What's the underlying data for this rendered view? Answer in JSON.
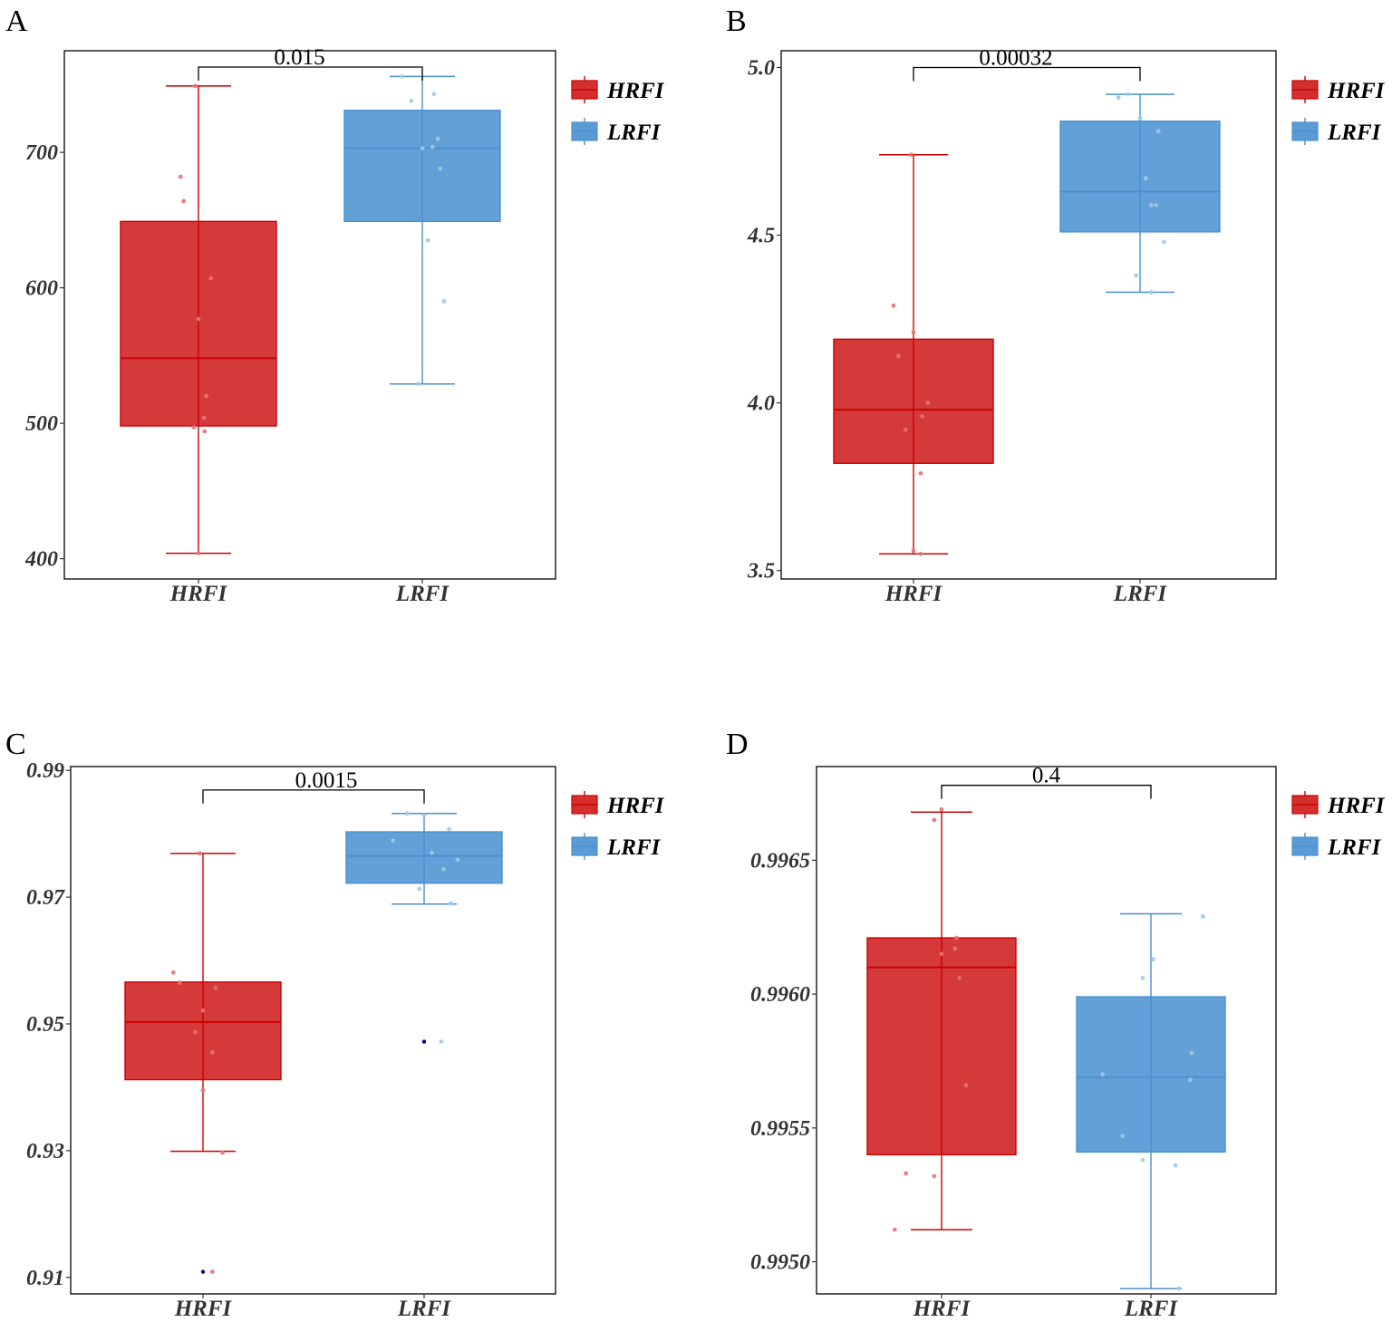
{
  "colors": {
    "HRFI_fill": "#d32f2f",
    "HRFI_line": "#cc0000",
    "HRFI_point": "#e57373",
    "LRFI_fill": "#5b9bd5",
    "LRFI_line": "#4a8fd0",
    "LRFI_point": "#9ecae1",
    "outlier": "#00008b"
  },
  "chart_data": [
    {
      "panel": "A",
      "type": "box",
      "ylim": [
        385,
        775
      ],
      "yticks": [
        {
          "v": 400,
          "label": "400"
        },
        {
          "v": 500,
          "label": "500"
        },
        {
          "v": 600,
          "label": "600"
        },
        {
          "v": 700,
          "label": "700"
        }
      ],
      "categories": [
        "HRFI",
        "LRFI"
      ],
      "pvalue": "0.015",
      "bracket_y": 771,
      "legend": [
        "HRFI",
        "LRFI"
      ],
      "boxes": [
        {
          "name": "HRFI",
          "min": 404,
          "q1": 498,
          "median": 548,
          "q3": 649,
          "max": 749,
          "outliers": [],
          "points": [
            [
              -0.04,
              749
            ],
            [
              -0.23,
              682
            ],
            [
              -0.19,
              664
            ],
            [
              0.16,
              607
            ],
            [
              0.0,
              577
            ],
            [
              0.1,
              520
            ],
            [
              0.07,
              504
            ],
            [
              -0.06,
              497
            ],
            [
              0.08,
              494
            ],
            [
              0.0,
              404
            ]
          ]
        },
        {
          "name": "LRFI",
          "min": 529,
          "q1": 649,
          "median": 703,
          "q3": 731,
          "max": 756,
          "outliers": [],
          "points": [
            [
              -0.26,
              756
            ],
            [
              -0.14,
              738
            ],
            [
              0.15,
              743
            ],
            [
              0.2,
              710
            ],
            [
              0.13,
              704
            ],
            [
              0.23,
              688
            ],
            [
              0.0,
              703
            ],
            [
              0.07,
              635
            ],
            [
              0.28,
              590
            ],
            [
              -0.05,
              529
            ]
          ]
        }
      ]
    },
    {
      "panel": "B",
      "type": "box",
      "ylim": [
        3.475,
        5.05
      ],
      "yticks": [
        {
          "v": 3.5,
          "label": "3.5"
        },
        {
          "v": 4.0,
          "label": "4.0"
        },
        {
          "v": 4.5,
          "label": "4.5"
        },
        {
          "v": 5.0,
          "label": "5.0"
        }
      ],
      "categories": [
        "HRFI",
        "LRFI"
      ],
      "pvalue": "0.00032",
      "bracket_y": 5.0,
      "legend": [
        "HRFI",
        "LRFI"
      ],
      "boxes": [
        {
          "name": "HRFI",
          "min": 3.55,
          "q1": 3.82,
          "median": 3.98,
          "q3": 4.19,
          "max": 4.74,
          "outliers": [],
          "points": [
            [
              -0.03,
              4.74
            ],
            [
              -0.25,
              4.29
            ],
            [
              0.0,
              4.21
            ],
            [
              -0.19,
              4.14
            ],
            [
              0.18,
              4.0
            ],
            [
              0.11,
              3.96
            ],
            [
              -0.1,
              3.92
            ],
            [
              0.09,
              3.79
            ],
            [
              0.0,
              3.56
            ],
            [
              0.09,
              3.55
            ]
          ]
        },
        {
          "name": "LRFI",
          "min": 4.33,
          "q1": 4.51,
          "median": 4.63,
          "q3": 4.84,
          "max": 4.92,
          "outliers": [],
          "points": [
            [
              -0.27,
              4.91
            ],
            [
              -0.15,
              4.92
            ],
            [
              0.0,
              4.85
            ],
            [
              0.23,
              4.81
            ],
            [
              0.07,
              4.67
            ],
            [
              0.14,
              4.59
            ],
            [
              0.2,
              4.59
            ],
            [
              0.3,
              4.48
            ],
            [
              -0.05,
              4.38
            ],
            [
              0.14,
              4.33
            ]
          ]
        }
      ]
    },
    {
      "panel": "C",
      "type": "box",
      "ylim": [
        0.9074,
        0.9906
      ],
      "yticks": [
        {
          "v": 0.91,
          "label": "0.91"
        },
        {
          "v": 0.93,
          "label": "0.93"
        },
        {
          "v": 0.95,
          "label": "0.95"
        },
        {
          "v": 0.97,
          "label": "0.97"
        },
        {
          "v": 0.99,
          "label": "0.99"
        }
      ],
      "categories": [
        "HRFI",
        "LRFI"
      ],
      "pvalue": "0.0015",
      "bracket_y": 0.9869,
      "legend": [
        "HRFI",
        "LRFI"
      ],
      "boxes": [
        {
          "name": "HRFI",
          "min": 0.9299,
          "q1": 0.9412,
          "median": 0.9503,
          "q3": 0.9566,
          "max": 0.9769,
          "outliers": [
            0.9109
          ],
          "points": [
            [
              -0.04,
              0.9769
            ],
            [
              -0.38,
              0.9581
            ],
            [
              -0.3,
              0.9565
            ],
            [
              0.16,
              0.9557
            ],
            [
              0.0,
              0.9521
            ],
            [
              -0.1,
              0.9487
            ],
            [
              0.12,
              0.9455
            ],
            [
              0.0,
              0.9395
            ],
            [
              0.25,
              0.9297
            ],
            [
              0.12,
              0.9109
            ]
          ]
        },
        {
          "name": "LRFI",
          "min": 0.9689,
          "q1": 0.9722,
          "median": 0.9765,
          "q3": 0.9803,
          "max": 0.9832,
          "outliers": [
            0.9472
          ],
          "points": [
            [
              -0.22,
              0.9832
            ],
            [
              0.0,
              0.9829
            ],
            [
              0.32,
              0.9807
            ],
            [
              -0.4,
              0.9789
            ],
            [
              0.1,
              0.977
            ],
            [
              0.43,
              0.9759
            ],
            [
              0.25,
              0.9744
            ],
            [
              -0.06,
              0.9713
            ],
            [
              0.34,
              0.969
            ],
            [
              0.22,
              0.9472
            ]
          ]
        }
      ]
    },
    {
      "panel": "D",
      "type": "box",
      "ylim": [
        0.99488,
        0.99685
      ],
      "yticks": [
        {
          "v": 0.995,
          "label": "0.9950"
        },
        {
          "v": 0.9955,
          "label": "0.9955"
        },
        {
          "v": 0.996,
          "label": "0.9960"
        },
        {
          "v": 0.9965,
          "label": "0.9965"
        }
      ],
      "categories": [
        "HRFI",
        "LRFI"
      ],
      "pvalue": "0.4",
      "bracket_y": 0.99678,
      "legend": [
        "HRFI",
        "LRFI"
      ],
      "boxes": [
        {
          "name": "HRFI",
          "min": 0.99512,
          "q1": 0.9954,
          "median": 0.9961,
          "q3": 0.99621,
          "max": 0.99668,
          "outliers": [],
          "points": [
            [
              0.0,
              0.99669
            ],
            [
              -0.1,
              0.99665
            ],
            [
              0.2,
              0.99621
            ],
            [
              0.18,
              0.99617
            ],
            [
              0.0,
              0.99615
            ],
            [
              0.24,
              0.99606
            ],
            [
              0.33,
              0.99566
            ],
            [
              -0.48,
              0.99533
            ],
            [
              -0.1,
              0.99532
            ],
            [
              -0.63,
              0.99512
            ]
          ]
        },
        {
          "name": "LRFI",
          "min": 0.9949,
          "q1": 0.99541,
          "median": 0.99569,
          "q3": 0.99599,
          "max": 0.9963,
          "outliers": [],
          "points": [
            [
              0.7,
              0.99629
            ],
            [
              0.03,
              0.99613
            ],
            [
              -0.11,
              0.99606
            ],
            [
              0.55,
              0.99578
            ],
            [
              0.53,
              0.99568
            ],
            [
              -0.65,
              0.9957
            ],
            [
              -0.38,
              0.99547
            ],
            [
              -0.11,
              0.99538
            ],
            [
              0.33,
              0.99536
            ],
            [
              0.38,
              0.9949
            ]
          ]
        }
      ]
    }
  ]
}
